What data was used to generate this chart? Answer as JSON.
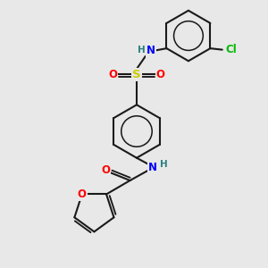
{
  "background_color": "#e8e8e8",
  "bond_color": "#1a1a1a",
  "bond_width": 1.5,
  "atom_colors": {
    "O": "#ff0000",
    "N": "#0000ff",
    "S": "#cccc00",
    "Cl": "#00bb00",
    "H": "#2a8080",
    "C": "#1a1a1a"
  },
  "font_size": 8.5,
  "fig_size": [
    3.0,
    3.0
  ],
  "dpi": 100
}
